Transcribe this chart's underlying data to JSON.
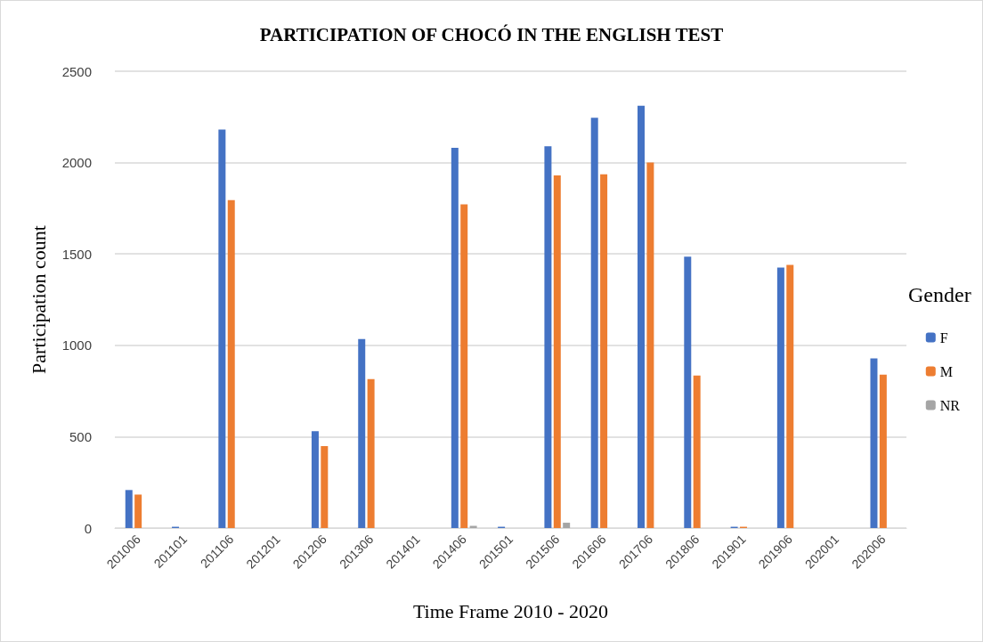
{
  "chart_data": {
    "type": "bar",
    "title": "PARTICIPATION OF CHOCÓ IN THE ENGLISH TEST",
    "xlabel": "Time Frame 2010 - 2020",
    "ylabel": "Participation count",
    "legend_title": "Gender",
    "categories": [
      "201006",
      "201101",
      "201106",
      "201201",
      "201206",
      "201306",
      "201401",
      "201406",
      "201501",
      "201506",
      "201606",
      "201706",
      "201806",
      "201901",
      "201906",
      "202001",
      "202006"
    ],
    "series": [
      {
        "name": "F",
        "color": "#4472c4",
        "values": [
          208,
          7,
          2181,
          0,
          530,
          1034,
          0,
          2081,
          7,
          2090,
          2245,
          2311,
          1485,
          7,
          1425,
          0,
          928
        ]
      },
      {
        "name": "M",
        "color": "#ed7d31",
        "values": [
          183,
          0,
          1795,
          0,
          448,
          815,
          0,
          1771,
          0,
          1930,
          1936,
          2000,
          834,
          7,
          1440,
          0,
          840
        ]
      },
      {
        "name": "NR",
        "color": "#a5a5a5",
        "values": [
          0,
          0,
          0,
          0,
          0,
          0,
          0,
          12,
          0,
          29,
          0,
          0,
          0,
          0,
          0,
          0,
          0
        ]
      }
    ],
    "ylim": [
      0,
      2500
    ],
    "yticks": [
      0,
      500,
      1000,
      1500,
      2000,
      2500
    ],
    "grid": "y",
    "legend": "right"
  }
}
